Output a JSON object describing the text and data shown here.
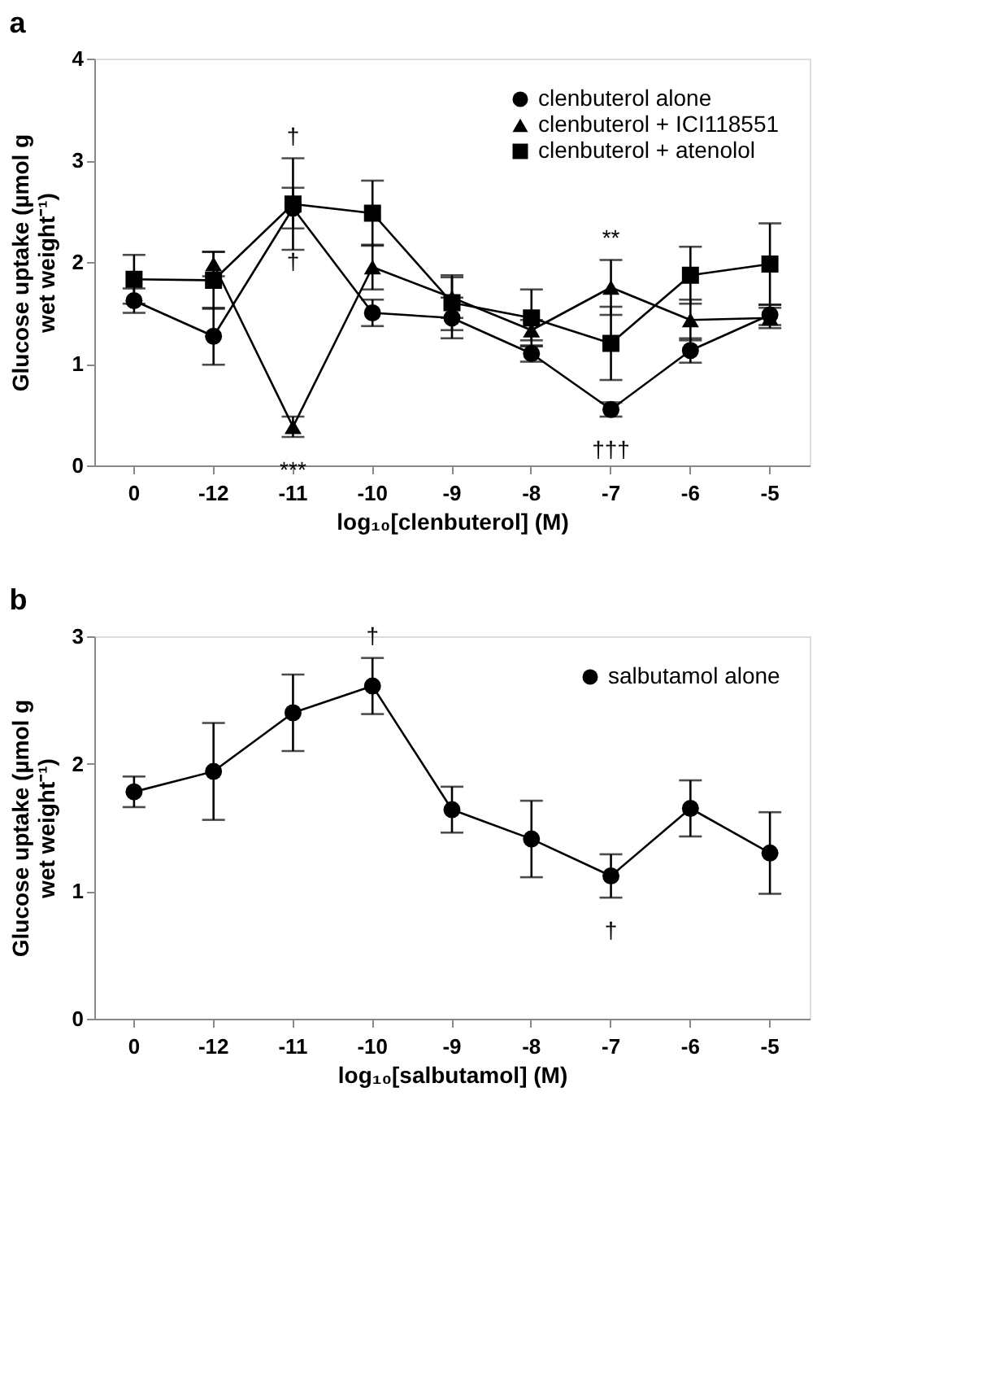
{
  "chart_data": [
    {
      "type": "line",
      "title": "a",
      "xlabel": "log₁₀[clenbuterol] (M)",
      "ylabel": "Glucose uptake (µmol g wet weight⁻¹)",
      "categories": [
        "0",
        "-12",
        "-11",
        "-10",
        "-9",
        "-8",
        "-7",
        "-6",
        "-5"
      ],
      "ylim": [
        0,
        4
      ],
      "yticks": [
        0,
        1,
        2,
        3,
        4
      ],
      "grid": false,
      "legend": "top right",
      "line_style": "solid",
      "series": [
        {
          "name": "clenbuterol alone",
          "color": "#000000",
          "marker": "circle",
          "values": [
            1.62,
            1.27,
            2.53,
            1.5,
            1.45,
            1.1,
            0.55,
            1.13,
            1.48
          ],
          "errors": [
            0.12,
            0.28,
            0.2,
            0.13,
            0.2,
            0.08,
            0.07,
            0.12,
            0.1
          ]
        },
        {
          "name": "clenbuterol + ICI118551",
          "color": "#000000",
          "marker": "triangle",
          "values": [
            null,
            1.98,
            0.38,
            1.95,
            1.65,
            1.33,
            1.75,
            1.43,
            1.45
          ],
          "errors": [
            null,
            0.12,
            0.1,
            0.22,
            0.2,
            0.1,
            0.27,
            0.2,
            0.1
          ]
        },
        {
          "name": "clenbuterol + atenolol",
          "color": "#000000",
          "marker": "square",
          "values": [
            1.83,
            1.82,
            2.57,
            2.48,
            1.6,
            1.45,
            1.2,
            1.87,
            1.98
          ],
          "errors": [
            0.24,
            0.28,
            0.45,
            0.32,
            0.27,
            0.28,
            0.36,
            0.28,
            0.4
          ]
        }
      ],
      "annotations": [
        {
          "text": "†",
          "x": "-11",
          "y": 2.57
        },
        {
          "text": "†",
          "x": "-11",
          "y": 2.53
        },
        {
          "text": "***",
          "x": "-11",
          "y": 0.38
        },
        {
          "text": "**",
          "x": "-7",
          "y": 1.75
        },
        {
          "text": "†††",
          "x": "-7",
          "y": 0.55
        }
      ]
    },
    {
      "type": "line",
      "title": "b",
      "xlabel": "log₁₀[salbutamol] (M)",
      "ylabel": "Glucose uptake (µmol g wet weight⁻¹)",
      "categories": [
        "0",
        "-12",
        "-11",
        "-10",
        "-9",
        "-8",
        "-7",
        "-6",
        "-5"
      ],
      "ylim": [
        0,
        3
      ],
      "yticks": [
        0,
        1,
        2,
        3
      ],
      "grid": false,
      "legend": "top right",
      "line_style": "solid",
      "series": [
        {
          "name": "salbutamol alone",
          "color": "#000000",
          "marker": "circle",
          "values": [
            1.78,
            1.94,
            2.4,
            2.61,
            1.64,
            1.41,
            1.12,
            1.65,
            1.3
          ],
          "errors": [
            0.12,
            0.38,
            0.3,
            0.22,
            0.18,
            0.3,
            0.17,
            0.22,
            0.32
          ]
        }
      ],
      "annotations": [
        {
          "text": "†",
          "x": "-10",
          "y": 2.61
        },
        {
          "text": "†",
          "x": "-7",
          "y": 1.12
        }
      ]
    }
  ]
}
